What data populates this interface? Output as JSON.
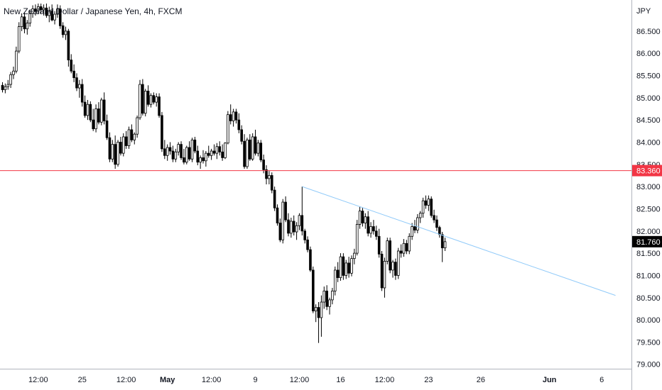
{
  "chart_data": {
    "type": "candlestick",
    "title": "New Zealand Dollar / Japanese Yen, 4h, FXCM",
    "currency": "JPY",
    "ylim": [
      78.9,
      87.2
    ],
    "y_ticks": [
      "79.000",
      "79.500",
      "80.000",
      "80.500",
      "81.000",
      "81.500",
      "82.000",
      "82.500",
      "83.000",
      "83.500",
      "84.000",
      "84.500",
      "85.000",
      "85.500",
      "86.000",
      "86.500"
    ],
    "x_ticks": [
      {
        "label": "12:00",
        "bar": 13,
        "bold": false
      },
      {
        "label": "25",
        "bar": 29,
        "bold": false
      },
      {
        "label": "12:00",
        "bar": 45,
        "bold": false
      },
      {
        "label": "May",
        "bar": 60,
        "bold": true
      },
      {
        "label": "12:00",
        "bar": 76,
        "bold": false
      },
      {
        "label": "9",
        "bar": 92,
        "bold": false
      },
      {
        "label": "12:00",
        "bar": 108,
        "bold": false
      },
      {
        "label": "16",
        "bar": 123,
        "bold": false
      },
      {
        "label": "12:00",
        "bar": 139,
        "bold": false
      },
      {
        "label": "23",
        "bar": 155,
        "bold": false
      },
      {
        "label": "26",
        "bar": 174,
        "bold": false
      },
      {
        "label": "Jun",
        "bar": 199,
        "bold": true
      },
      {
        "label": "6",
        "bar": 218,
        "bold": false
      }
    ],
    "colors": {
      "up": "#ffffff",
      "down": "#000000",
      "outline": "#000000",
      "horizontal_line": "#f23645",
      "trendline": "#90caf9",
      "last_price_tag": "#000000"
    },
    "horizontal_line": {
      "price": 83.36,
      "label": "83.360"
    },
    "last_price": {
      "price": 81.76,
      "label": "81.760"
    },
    "trendline": {
      "start": {
        "bar": 109,
        "price": 83.0
      },
      "end": {
        "bar": 223,
        "price": 80.55
      }
    },
    "candles": [
      [
        85.28,
        85.35,
        85.12,
        85.18
      ],
      [
        85.18,
        85.32,
        85.1,
        85.25
      ],
      [
        85.25,
        85.4,
        85.18,
        85.3
      ],
      [
        85.3,
        85.58,
        85.22,
        85.52
      ],
      [
        85.52,
        85.7,
        85.42,
        85.6
      ],
      [
        85.6,
        86.15,
        85.55,
        86.05
      ],
      [
        86.05,
        86.7,
        86.0,
        86.6
      ],
      [
        86.6,
        86.9,
        86.5,
        86.82
      ],
      [
        86.82,
        86.92,
        86.45,
        86.55
      ],
      [
        86.55,
        86.75,
        86.42,
        86.68
      ],
      [
        86.68,
        86.98,
        86.6,
        86.9
      ],
      [
        86.9,
        87.08,
        86.8,
        87.0
      ],
      [
        87.0,
        87.1,
        86.85,
        86.95
      ],
      [
        86.95,
        87.12,
        86.88,
        87.05
      ],
      [
        87.05,
        87.12,
        86.9,
        86.98
      ],
      [
        86.98,
        87.1,
        86.85,
        87.02
      ],
      [
        87.02,
        87.12,
        86.8,
        86.85
      ],
      [
        86.85,
        87.05,
        86.7,
        86.95
      ],
      [
        86.95,
        87.1,
        86.72,
        86.75
      ],
      [
        86.75,
        86.95,
        86.65,
        86.88
      ],
      [
        86.88,
        87.1,
        86.8,
        87.0
      ],
      [
        87.0,
        87.08,
        86.55,
        86.62
      ],
      [
        86.62,
        86.7,
        86.35,
        86.42
      ],
      [
        86.42,
        86.6,
        86.3,
        86.5
      ],
      [
        86.5,
        86.55,
        85.7,
        85.85
      ],
      [
        85.85,
        85.98,
        85.55,
        85.6
      ],
      [
        85.6,
        85.75,
        85.35,
        85.45
      ],
      [
        85.45,
        85.55,
        85.15,
        85.22
      ],
      [
        85.22,
        85.4,
        85.0,
        85.3
      ],
      [
        85.3,
        85.42,
        84.8,
        84.9
      ],
      [
        84.9,
        85.05,
        84.55,
        84.6
      ],
      [
        84.6,
        84.95,
        84.5,
        84.85
      ],
      [
        84.85,
        84.92,
        84.45,
        84.5
      ],
      [
        84.5,
        84.75,
        84.25,
        84.3
      ],
      [
        84.3,
        84.85,
        84.22,
        84.75
      ],
      [
        84.75,
        84.9,
        84.4,
        84.45
      ],
      [
        84.45,
        85.0,
        84.38,
        84.95
      ],
      [
        84.95,
        85.12,
        84.4,
        84.48
      ],
      [
        84.48,
        84.62,
        84.05,
        84.1
      ],
      [
        84.1,
        84.22,
        83.55,
        83.62
      ],
      [
        83.62,
        84.05,
        83.55,
        83.95
      ],
      [
        83.95,
        84.15,
        83.4,
        83.5
      ],
      [
        83.5,
        84.05,
        83.45,
        84.0
      ],
      [
        84.0,
        84.12,
        83.7,
        83.75
      ],
      [
        83.75,
        84.2,
        83.68,
        84.12
      ],
      [
        84.12,
        84.25,
        83.85,
        83.92
      ],
      [
        83.92,
        84.35,
        83.85,
        84.28
      ],
      [
        84.28,
        84.4,
        84.0,
        84.05
      ],
      [
        84.05,
        84.22,
        83.95,
        84.18
      ],
      [
        84.18,
        84.6,
        84.1,
        84.55
      ],
      [
        84.55,
        85.4,
        84.5,
        85.3
      ],
      [
        85.3,
        85.42,
        84.6,
        84.65
      ],
      [
        84.65,
        85.2,
        84.58,
        85.15
      ],
      [
        85.15,
        85.28,
        84.8,
        84.85
      ],
      [
        84.85,
        85.1,
        84.78,
        85.05
      ],
      [
        85.05,
        85.12,
        84.85,
        84.9
      ],
      [
        84.9,
        85.1,
        84.8,
        85.02
      ],
      [
        85.02,
        85.1,
        84.55,
        84.6
      ],
      [
        84.6,
        84.68,
        83.78,
        83.85
      ],
      [
        83.85,
        84.05,
        83.62,
        83.7
      ],
      [
        83.7,
        83.95,
        83.58,
        83.88
      ],
      [
        83.88,
        84.0,
        83.72,
        83.8
      ],
      [
        83.8,
        83.92,
        83.55,
        83.62
      ],
      [
        83.62,
        83.85,
        83.55,
        83.78
      ],
      [
        83.78,
        84.0,
        83.7,
        83.95
      ],
      [
        83.95,
        84.02,
        83.6,
        83.65
      ],
      [
        83.65,
        83.85,
        83.5,
        83.55
      ],
      [
        83.55,
        83.92,
        83.5,
        83.88
      ],
      [
        83.88,
        84.02,
        83.58,
        83.62
      ],
      [
        83.62,
        84.1,
        83.55,
        84.05
      ],
      [
        84.05,
        84.12,
        83.75,
        83.8
      ],
      [
        83.8,
        83.92,
        83.48,
        83.55
      ],
      [
        83.55,
        83.7,
        83.4,
        83.65
      ],
      [
        83.65,
        83.82,
        83.52,
        83.58
      ],
      [
        83.58,
        83.8,
        83.45,
        83.75
      ],
      [
        83.75,
        83.92,
        83.65,
        83.7
      ],
      [
        83.7,
        83.85,
        83.6,
        83.8
      ],
      [
        83.8,
        83.95,
        83.7,
        83.75
      ],
      [
        83.75,
        83.98,
        83.62,
        83.9
      ],
      [
        83.9,
        84.02,
        83.7,
        83.78
      ],
      [
        83.78,
        83.95,
        83.58,
        83.65
      ],
      [
        83.65,
        84.0,
        83.62,
        83.98
      ],
      [
        83.98,
        84.7,
        83.95,
        84.62
      ],
      [
        84.62,
        84.85,
        84.4,
        84.48
      ],
      [
        84.48,
        84.75,
        84.35,
        84.68
      ],
      [
        84.68,
        84.75,
        84.42,
        84.5
      ],
      [
        84.5,
        84.65,
        84.2,
        84.28
      ],
      [
        84.28,
        84.38,
        83.95,
        84.02
      ],
      [
        84.02,
        84.18,
        83.4,
        83.45
      ],
      [
        83.45,
        84.1,
        83.4,
        84.05
      ],
      [
        84.05,
        84.18,
        83.58,
        83.62
      ],
      [
        83.62,
        84.2,
        83.58,
        84.12
      ],
      [
        84.12,
        84.28,
        83.7,
        83.75
      ],
      [
        83.75,
        84.05,
        83.68,
        83.98
      ],
      [
        83.98,
        84.05,
        83.55,
        83.6
      ],
      [
        83.6,
        83.72,
        83.3,
        83.38
      ],
      [
        83.38,
        83.48,
        83.05,
        83.18
      ],
      [
        83.18,
        83.35,
        83.05,
        83.25
      ],
      [
        83.25,
        83.32,
        82.85,
        82.92
      ],
      [
        82.92,
        83.0,
        82.45,
        82.52
      ],
      [
        82.52,
        82.6,
        82.12,
        82.18
      ],
      [
        82.18,
        82.28,
        81.75,
        81.8
      ],
      [
        81.8,
        82.72,
        81.72,
        82.65
      ],
      [
        82.65,
        82.78,
        82.2,
        82.25
      ],
      [
        82.25,
        82.4,
        81.88,
        81.95
      ],
      [
        81.95,
        82.3,
        81.85,
        82.22
      ],
      [
        82.22,
        82.35,
        81.9,
        81.98
      ],
      [
        81.98,
        82.2,
        81.8,
        82.12
      ],
      [
        82.12,
        82.4,
        82.02,
        82.35
      ],
      [
        82.35,
        83.0,
        81.9,
        82.0
      ],
      [
        82.0,
        82.05,
        81.72,
        81.8
      ],
      [
        81.8,
        81.88,
        81.52,
        81.58
      ],
      [
        81.58,
        81.65,
        81.08,
        81.12
      ],
      [
        81.12,
        81.2,
        80.15,
        80.2
      ],
      [
        80.2,
        80.35,
        79.95,
        80.28
      ],
      [
        80.28,
        80.4,
        79.48,
        80.05
      ],
      [
        80.05,
        80.55,
        79.62,
        80.4
      ],
      [
        80.4,
        80.75,
        80.25,
        80.65
      ],
      [
        80.65,
        80.78,
        80.22,
        80.3
      ],
      [
        80.3,
        80.5,
        80.12,
        80.45
      ],
      [
        80.45,
        80.72,
        80.35,
        80.65
      ],
      [
        80.65,
        81.2,
        80.55,
        81.12
      ],
      [
        81.12,
        81.3,
        80.85,
        80.95
      ],
      [
        80.95,
        81.5,
        80.88,
        81.42
      ],
      [
        81.42,
        81.5,
        80.9,
        81.0
      ],
      [
        81.0,
        81.35,
        80.92,
        81.28
      ],
      [
        81.28,
        81.42,
        80.95,
        81.05
      ],
      [
        81.05,
        81.45,
        80.98,
        81.38
      ],
      [
        81.38,
        81.6,
        81.25,
        81.5
      ],
      [
        81.5,
        82.25,
        81.45,
        82.15
      ],
      [
        82.15,
        82.55,
        82.05,
        82.45
      ],
      [
        82.45,
        82.52,
        82.1,
        82.18
      ],
      [
        82.18,
        82.4,
        82.05,
        82.32
      ],
      [
        82.32,
        82.45,
        81.88,
        81.95
      ],
      [
        81.95,
        82.2,
        81.85,
        82.1
      ],
      [
        82.1,
        82.25,
        81.92,
        82.0
      ],
      [
        82.0,
        82.12,
        81.8,
        81.88
      ],
      [
        81.88,
        82.05,
        81.4,
        81.48
      ],
      [
        81.48,
        81.55,
        80.65,
        80.72
      ],
      [
        80.72,
        81.4,
        80.5,
        81.32
      ],
      [
        81.32,
        81.85,
        81.25,
        81.78
      ],
      [
        81.78,
        81.85,
        81.05,
        81.12
      ],
      [
        81.12,
        81.35,
        80.95,
        81.3
      ],
      [
        81.3,
        81.38,
        80.9,
        81.0
      ],
      [
        81.0,
        81.62,
        80.92,
        81.55
      ],
      [
        81.55,
        81.7,
        81.4,
        81.5
      ],
      [
        81.5,
        81.82,
        81.42,
        81.72
      ],
      [
        81.72,
        81.8,
        81.48,
        81.55
      ],
      [
        81.55,
        81.95,
        81.48,
        81.88
      ],
      [
        81.88,
        82.18,
        81.8,
        82.1
      ],
      [
        82.1,
        82.25,
        81.95,
        82.02
      ],
      [
        82.02,
        82.38,
        81.95,
        82.3
      ],
      [
        82.3,
        82.45,
        82.18,
        82.4
      ],
      [
        82.4,
        82.75,
        82.3,
        82.68
      ],
      [
        82.68,
        82.8,
        82.5,
        82.58
      ],
      [
        82.58,
        82.8,
        82.45,
        82.72
      ],
      [
        82.72,
        82.78,
        82.3,
        82.35
      ],
      [
        82.35,
        82.48,
        82.18,
        82.25
      ],
      [
        82.25,
        82.35,
        82.0,
        82.08
      ],
      [
        82.08,
        82.12,
        81.85,
        81.92
      ],
      [
        81.92,
        81.98,
        81.3,
        81.62
      ],
      [
        81.62,
        81.85,
        81.55,
        81.76
      ]
    ]
  }
}
